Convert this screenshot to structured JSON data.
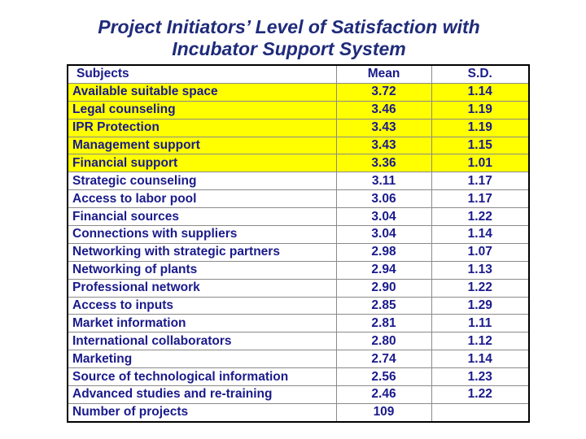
{
  "title_line1": "Project Initiators’ Level of Satisfaction with",
  "title_line2": "Incubator Support System",
  "table": {
    "headers": [
      "Subjects",
      "Mean",
      "S.D."
    ],
    "highlight_color": "#ffff00",
    "text_color": "#1a1a8c",
    "rows": [
      {
        "subject": "Available suitable space",
        "mean": "3.72",
        "sd": "1.14"
      },
      {
        "subject": "Legal counseling",
        "mean": "3.46",
        "sd": "1.19"
      },
      {
        "subject": "IPR Protection",
        "mean": "3.43",
        "sd": "1.19"
      },
      {
        "subject": "Management support",
        "mean": "3.43",
        "sd": "1.15"
      },
      {
        "subject": "Financial support",
        "mean": "3.36",
        "sd": "1.01"
      },
      {
        "subject": "Strategic counseling",
        "mean": "3.11",
        "sd": "1.17"
      },
      {
        "subject": "Access to labor pool",
        "mean": "3.06",
        "sd": "1.17"
      },
      {
        "subject": "Financial sources",
        "mean": "3.04",
        "sd": "1.22"
      },
      {
        "subject": "Connections with suppliers",
        "mean": "3.04",
        "sd": "1.14"
      },
      {
        "subject": "Networking with strategic partners",
        "mean": "2.98",
        "sd": "1.07"
      },
      {
        "subject": "Networking of plants",
        "mean": "2.94",
        "sd": "1.13"
      },
      {
        "subject": "Professional network",
        "mean": "2.90",
        "sd": "1.22"
      },
      {
        "subject": "Access to inputs",
        "mean": "2.85",
        "sd": "1.29"
      },
      {
        "subject": "Market information",
        "mean": "2.81",
        "sd": "1.11"
      },
      {
        "subject": "International collaborators",
        "mean": "2.80",
        "sd": "1.12"
      },
      {
        "subject": "Marketing",
        "mean": "2.74",
        "sd": "1.14"
      },
      {
        "subject": "Source of technological information",
        "mean": "2.56",
        "sd": "1.23"
      },
      {
        "subject": "Advanced studies and re-training",
        "mean": "2.46",
        "sd": "1.22"
      }
    ],
    "footer": {
      "label": "Number of projects",
      "value": "109"
    }
  }
}
